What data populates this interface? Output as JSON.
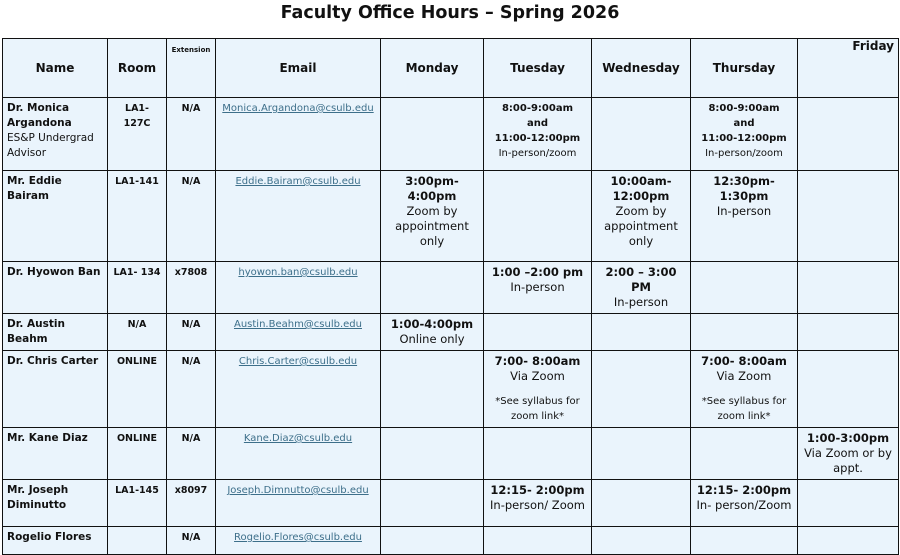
{
  "title": "Faculty Office Hours – Spring 2026",
  "colors": {
    "cell_background": "#eaf4fc",
    "link": "#3d6f8a",
    "border": "#111111"
  },
  "headers": {
    "name": "Name",
    "room": "Room",
    "extension": "Extension",
    "email": "Email",
    "days": [
      "Monday",
      "Tuesday",
      "Wednesday",
      "Thursday",
      "Friday"
    ]
  },
  "rows": [
    {
      "name": "Dr. Monica Argandona",
      "name_note": "ES&P Undergrad Advisor",
      "room": "LA1-127C",
      "ext": "N/A",
      "email": "Monica.Argandona@csulb.edu",
      "days": [
        [],
        [
          {
            "t": "8:00-9:00am",
            "b": true,
            "sm": true
          },
          {
            "t": "and",
            "b": true,
            "sm": true
          },
          {
            "t": "11:00-12:00pm",
            "b": true,
            "sm": true
          },
          {
            "t": "In-person/zoom",
            "sm": true
          }
        ],
        [],
        [
          {
            "t": "8:00-9:00am",
            "b": true,
            "sm": true
          },
          {
            "t": "and",
            "b": true,
            "sm": true
          },
          {
            "t": "11:00-12:00pm",
            "b": true,
            "sm": true
          },
          {
            "t": "In-person/zoom",
            "sm": true
          }
        ],
        []
      ]
    },
    {
      "name": "Mr. Eddie Bairam",
      "room": "LA1-141",
      "ext": "N/A",
      "email": "Eddie.Bairam@csulb.edu",
      "days": [
        [
          {
            "t": "3:00pm-4:00pm",
            "b": true
          },
          {
            "t": "Zoom by"
          },
          {
            "t": "appointment"
          },
          {
            "t": "only"
          }
        ],
        [],
        [
          {
            "t": "10:00am-",
            "b": true
          },
          {
            "t": "12:00pm",
            "b": true
          },
          {
            "t": "Zoom by"
          },
          {
            "t": "appointment"
          },
          {
            "t": "only"
          }
        ],
        [
          {
            "t": "12:30pm-",
            "b": true
          },
          {
            "t": "1:30pm",
            "b": true
          },
          {
            "t": "In-person"
          }
        ],
        []
      ]
    },
    {
      "name": "Dr. Hyowon Ban",
      "room": "LA1- 134",
      "ext": "x7808",
      "email": "hyowon.ban@csulb.edu",
      "days": [
        [],
        [
          {
            "t": "1:00 –2:00 pm",
            "b": true
          },
          {
            "t": "In-person"
          }
        ],
        [
          {
            "t": "2:00 – 3:00 PM",
            "b": true
          },
          {
            "t": "In-person"
          }
        ],
        [],
        []
      ]
    },
    {
      "name": "Dr. Austin Beahm",
      "room": "N/A",
      "ext": "N/A",
      "email": "Austin.Beahm@csulb.edu",
      "days": [
        [
          {
            "t": "1:00-4:00pm",
            "b": true
          },
          {
            "t": "Online only"
          }
        ],
        [],
        [],
        [],
        []
      ]
    },
    {
      "name": "Dr. Chris Carter",
      "room": "ONLINE",
      "ext": "N/A",
      "email": "Chris.Carter@csulb.edu",
      "days": [
        [],
        [
          {
            "t": "7:00- 8:00am",
            "b": true
          },
          {
            "t": "Via Zoom"
          },
          {
            "t": "*See syllabus for",
            "sm": true,
            "gap": true
          },
          {
            "t": "zoom link*",
            "sm": true
          }
        ],
        [],
        [
          {
            "t": "7:00- 8:00am",
            "b": true
          },
          {
            "t": "Via Zoom"
          },
          {
            "t": "*See syllabus for",
            "sm": true,
            "gap": true
          },
          {
            "t": "zoom link*",
            "sm": true
          }
        ],
        []
      ]
    },
    {
      "name": "Mr. Kane Diaz",
      "room": "ONLINE",
      "ext": "N/A",
      "email": "Kane.Diaz@csulb.edu",
      "days": [
        [],
        [],
        [],
        [],
        [
          {
            "t": "1:00-3:00pm",
            "b": true
          },
          {
            "t": "Via Zoom or by"
          },
          {
            "t": "appt."
          }
        ]
      ]
    },
    {
      "name": "Mr. Joseph Diminutto",
      "room": "LA1-145",
      "ext": "x8097",
      "email": "Joseph.Dimnutto@csulb.edu",
      "days": [
        [],
        [
          {
            "t": "12:15- 2:00pm",
            "b": true
          },
          {
            "t": "In-person/ Zoom"
          }
        ],
        [],
        [
          {
            "t": "12:15- 2:00pm",
            "b": true
          },
          {
            "t": "In- person/Zoom"
          }
        ],
        []
      ]
    },
    {
      "name": "Rogelio Flores",
      "room": "",
      "ext": "N/A",
      "email": "Rogelio.Flores@csulb.edu",
      "days": [
        [],
        [],
        [],
        [],
        []
      ]
    }
  ]
}
